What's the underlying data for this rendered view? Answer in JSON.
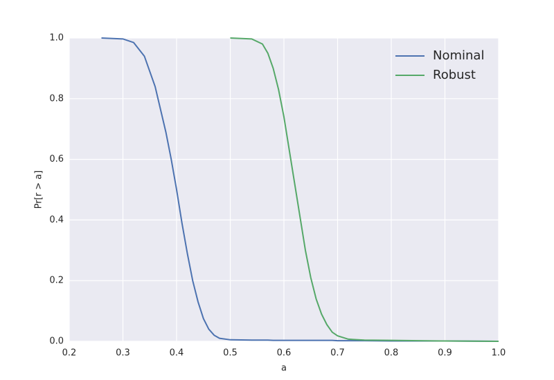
{
  "chart_data": {
    "type": "line",
    "xlabel": "a",
    "ylabel": "Pr[r > a]",
    "x": [
      0.26,
      0.3,
      0.32,
      0.34,
      0.36,
      0.38,
      0.39,
      0.4,
      0.41,
      0.42,
      0.43,
      0.44,
      0.45,
      0.46,
      0.47,
      0.48,
      0.5,
      0.54,
      0.56,
      0.57,
      0.58,
      0.59,
      0.6,
      0.61,
      0.62,
      0.63,
      0.64,
      0.65,
      0.66,
      0.67,
      0.68,
      0.69,
      0.7,
      0.72,
      0.75,
      0.8,
      0.9,
      1.0
    ],
    "series": [
      {
        "name": "Nominal",
        "color": "#4c72b0",
        "values": [
          1.0,
          0.997,
          0.985,
          0.94,
          0.84,
          0.69,
          0.6,
          0.5,
          0.39,
          0.29,
          0.2,
          0.13,
          0.075,
          0.04,
          0.02,
          0.01,
          0.005,
          0.004,
          0.004,
          0.004,
          0.003,
          0.003,
          0.003,
          0.003,
          0.003,
          0.003,
          0.003,
          0.003,
          0.003,
          0.003,
          0.003,
          0.003,
          0.002,
          0.002,
          0.002,
          0.001,
          0.001,
          0.0
        ]
      },
      {
        "name": "Robust",
        "color": "#55a868",
        "values": [
          null,
          null,
          null,
          null,
          null,
          null,
          null,
          null,
          null,
          null,
          null,
          null,
          null,
          null,
          null,
          null,
          1.0,
          0.997,
          0.98,
          0.95,
          0.9,
          0.83,
          0.74,
          0.63,
          0.52,
          0.41,
          0.3,
          0.21,
          0.14,
          0.09,
          0.055,
          0.03,
          0.018,
          0.007,
          0.004,
          0.003,
          0.001,
          0.0
        ]
      }
    ],
    "xlim": [
      0.2,
      1.0
    ],
    "xticks": [
      0.2,
      0.3,
      0.4,
      0.5,
      0.6,
      0.7,
      0.8,
      0.9,
      {
        "value": 1.0,
        "label": "1.0"
      }
    ],
    "ylim": [
      0.0,
      1.0
    ],
    "yticks": [
      {
        "value": 0.0,
        "label": "0.0"
      },
      0.2,
      0.4,
      0.6,
      0.8,
      {
        "value": 1.0,
        "label": "1.0"
      }
    ],
    "grid": true,
    "legend": "upper right"
  }
}
